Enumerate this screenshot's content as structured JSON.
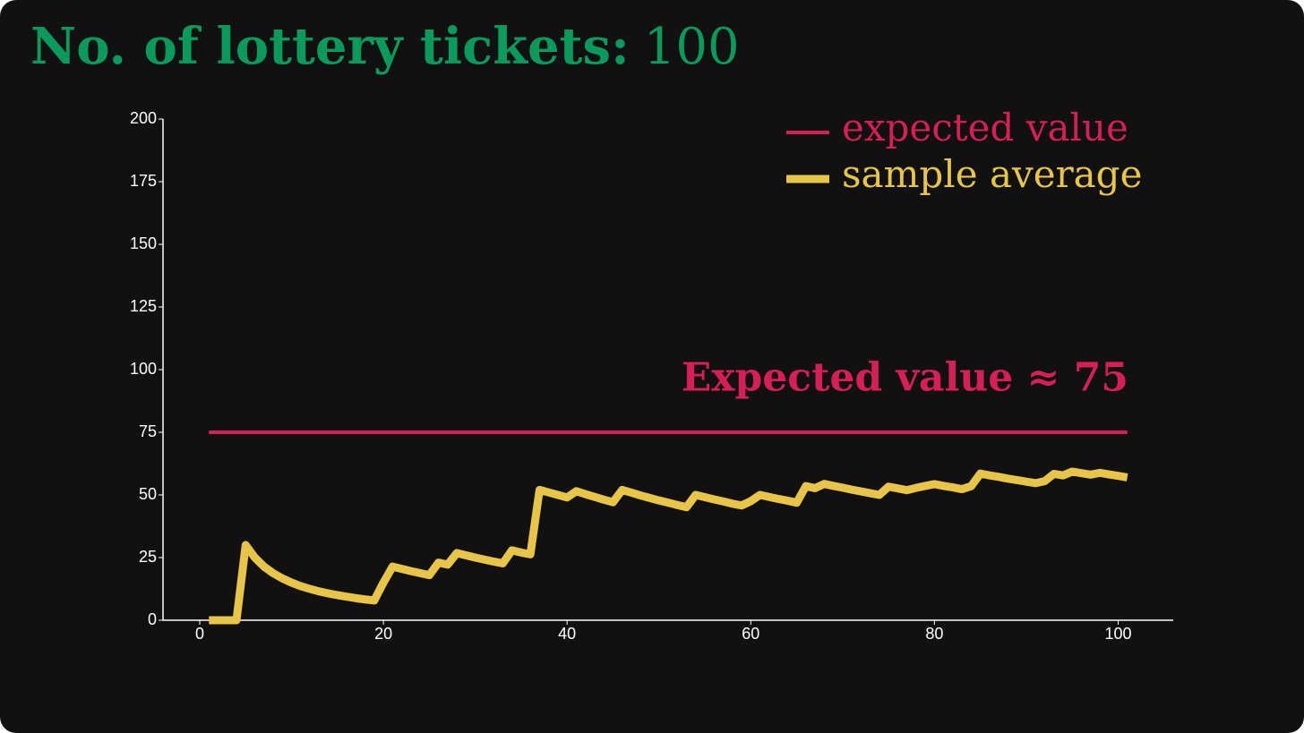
{
  "chart_data": {
    "type": "line",
    "title": "No. of lottery tickets:",
    "title_value": 100,
    "annotation": "Expected value ≈ 75",
    "x": [
      1,
      2,
      3,
      4,
      5,
      6,
      7,
      8,
      9,
      10,
      11,
      12,
      13,
      14,
      15,
      16,
      17,
      18,
      19,
      20,
      21,
      22,
      23,
      24,
      25,
      26,
      27,
      28,
      29,
      30,
      31,
      32,
      33,
      34,
      35,
      36,
      37,
      38,
      39,
      40,
      41,
      42,
      43,
      44,
      45,
      46,
      47,
      48,
      49,
      50,
      51,
      52,
      53,
      54,
      55,
      56,
      57,
      58,
      59,
      60,
      61,
      62,
      63,
      64,
      65,
      66,
      67,
      68,
      69,
      70,
      71,
      72,
      73,
      74,
      75,
      76,
      77,
      78,
      79,
      80,
      81,
      82,
      83,
      84,
      85,
      86,
      87,
      88,
      89,
      90,
      91,
      92,
      93,
      94,
      95,
      96,
      97,
      98,
      99,
      100,
      101
    ],
    "series": [
      {
        "name": "expected value",
        "color": "#d61f57",
        "width": 4,
        "values": [
          75,
          75,
          75,
          75,
          75,
          75,
          75,
          75,
          75,
          75,
          75,
          75,
          75,
          75,
          75,
          75,
          75,
          75,
          75,
          75,
          75,
          75,
          75,
          75,
          75,
          75,
          75,
          75,
          75,
          75,
          75,
          75,
          75,
          75,
          75,
          75,
          75,
          75,
          75,
          75,
          75,
          75,
          75,
          75,
          75,
          75,
          75,
          75,
          75,
          75,
          75,
          75,
          75,
          75,
          75,
          75,
          75,
          75,
          75,
          75,
          75,
          75,
          75,
          75,
          75,
          75,
          75,
          75,
          75,
          75,
          75,
          75,
          75,
          75,
          75,
          75,
          75,
          75,
          75,
          75,
          75,
          75,
          75,
          75,
          75,
          75,
          75,
          75,
          75,
          75,
          75,
          75,
          75,
          75,
          75,
          75,
          75,
          75,
          75,
          75,
          75
        ]
      },
      {
        "name": "sample average",
        "color": "#e8c547",
        "width": 9,
        "values": [
          0,
          0,
          0,
          0,
          30,
          25,
          21.4,
          18.75,
          16.7,
          15,
          13.6,
          12.5,
          11.5,
          10.7,
          10,
          9.4,
          8.8,
          8.3,
          7.9,
          15,
          21.4,
          20.5,
          19.6,
          18.8,
          18,
          23,
          22.2,
          26.8,
          25.9,
          25,
          24.2,
          23.4,
          22.7,
          27.9,
          27,
          26.3,
          52,
          51,
          50,
          49,
          51.5,
          50.3,
          49.2,
          48.1,
          47.1,
          52,
          50.9,
          49.8,
          48.8,
          47.8,
          46.9,
          46,
          45.1,
          50,
          49.1,
          48.2,
          47.4,
          46.5,
          45.8,
          47.5,
          50,
          49.2,
          48.4,
          47.7,
          46.9,
          53.5,
          52.7,
          54.4,
          53.6,
          52.9,
          52.1,
          51.4,
          50.7,
          50,
          53.3,
          52.6,
          51.9,
          52.8,
          53.6,
          54.3,
          53.6,
          53,
          52.3,
          53.5,
          58.5,
          57.8,
          57.2,
          56.5,
          55.9,
          55.3,
          54.7,
          55.5,
          58.4,
          57.8,
          59.3,
          58.7,
          58.1,
          58.8,
          58.2,
          57.6,
          57
        ]
      }
    ],
    "xlim": [
      -4,
      106
    ],
    "xticks": [
      0,
      20,
      40,
      60,
      80,
      100
    ],
    "ylim": [
      0,
      200
    ],
    "yticks": [
      0,
      25,
      50,
      75,
      100,
      125,
      150,
      175,
      200
    ],
    "grid": false,
    "legend": "upper right",
    "title_color": "#0a9a5c",
    "annotation_color": "#d61f57"
  }
}
